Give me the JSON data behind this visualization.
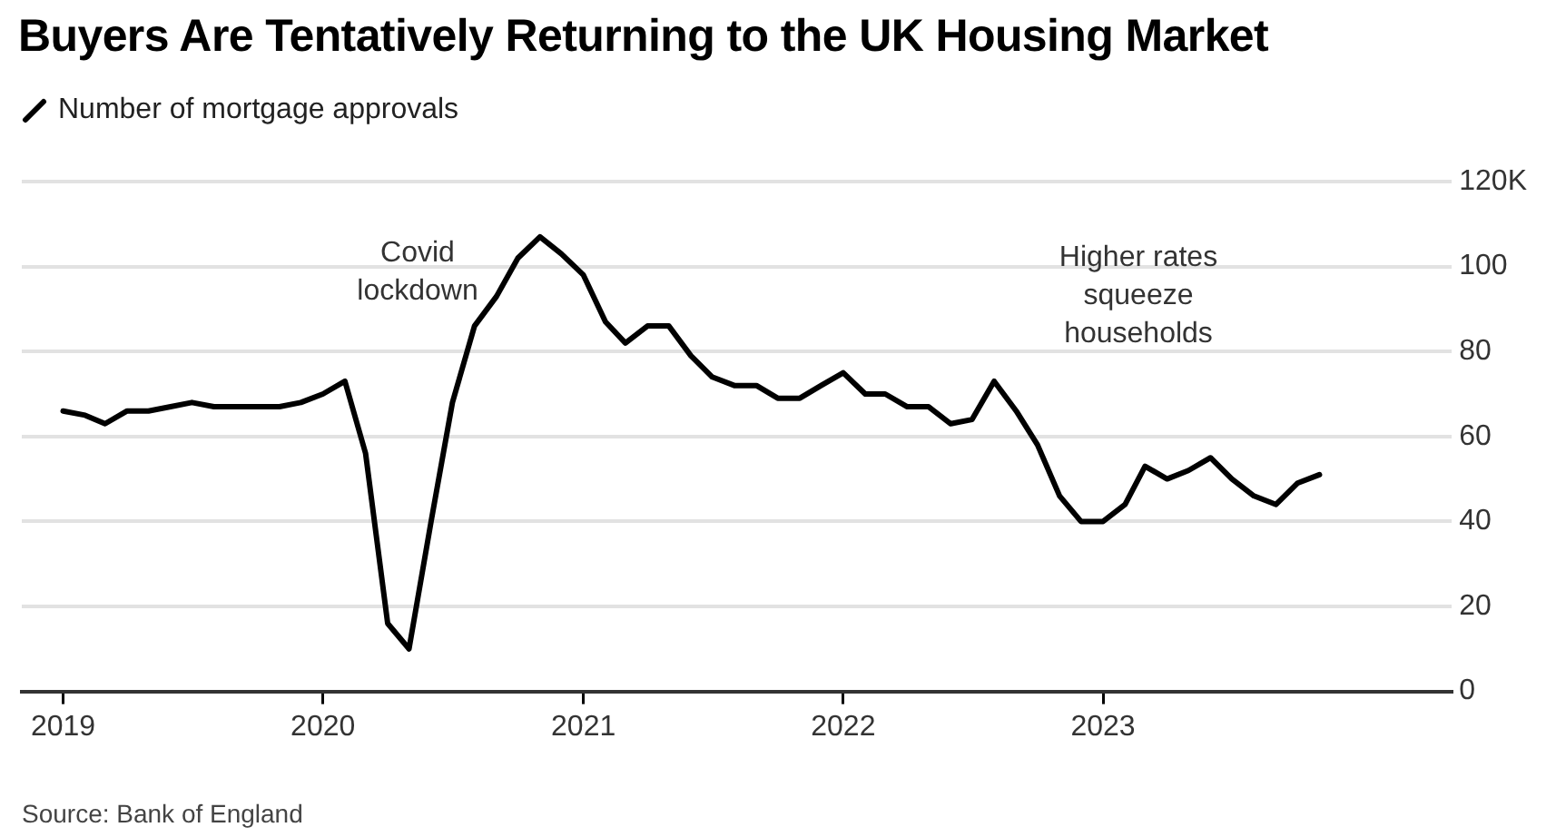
{
  "chart_data": {
    "type": "line",
    "title": "Buyers Are Tentatively Returning to the UK Housing Market",
    "x": [
      "2019-01",
      "2019-02",
      "2019-03",
      "2019-04",
      "2019-05",
      "2019-06",
      "2019-07",
      "2019-08",
      "2019-09",
      "2019-10",
      "2019-11",
      "2019-12",
      "2020-01",
      "2020-02",
      "2020-03",
      "2020-04",
      "2020-05",
      "2020-06",
      "2020-07",
      "2020-08",
      "2020-09",
      "2020-10",
      "2020-11",
      "2020-12",
      "2021-01",
      "2021-02",
      "2021-03",
      "2021-04",
      "2021-05",
      "2021-06",
      "2021-07",
      "2021-08",
      "2021-09",
      "2021-10",
      "2021-11",
      "2021-12",
      "2022-01",
      "2022-02",
      "2022-03",
      "2022-04",
      "2022-05",
      "2022-06",
      "2022-07",
      "2022-08",
      "2022-09",
      "2022-10",
      "2022-11",
      "2022-12",
      "2023-01",
      "2023-02",
      "2023-03",
      "2023-04",
      "2023-05",
      "2023-06",
      "2023-07",
      "2023-08",
      "2023-09",
      "2023-10",
      "2023-11"
    ],
    "series": [
      {
        "name": "Number of mortgage approvals",
        "color": "#000000",
        "values": [
          66,
          65,
          63,
          66,
          66,
          67,
          68,
          67,
          67,
          67,
          67,
          68,
          70,
          73,
          56,
          16,
          10,
          40,
          68,
          86,
          93,
          102,
          107,
          103,
          98,
          87,
          82,
          86,
          86,
          79,
          74,
          72,
          72,
          69,
          69,
          72,
          75,
          70,
          70,
          67,
          67,
          63,
          64,
          73,
          66,
          58,
          46,
          40,
          40,
          44,
          53,
          50,
          52,
          55,
          50,
          46,
          44,
          49,
          51
        ]
      }
    ],
    "xlim": [
      "2018-11-04",
      "2024-05-05"
    ],
    "xticks": [
      "2019",
      "2020",
      "2021",
      "2022",
      "2023"
    ],
    "ylim": [
      0,
      120
    ],
    "yticks": [
      0,
      20,
      40,
      60,
      80,
      100,
      {
        "value": 120,
        "label": "120K"
      }
    ],
    "grid": "y",
    "legend": "top left",
    "marker": "none",
    "line_style": "solid",
    "annotations": [
      "Covid lockdown",
      "Higher rates squeeze households",
      "Source: Bank of England"
    ]
  }
}
